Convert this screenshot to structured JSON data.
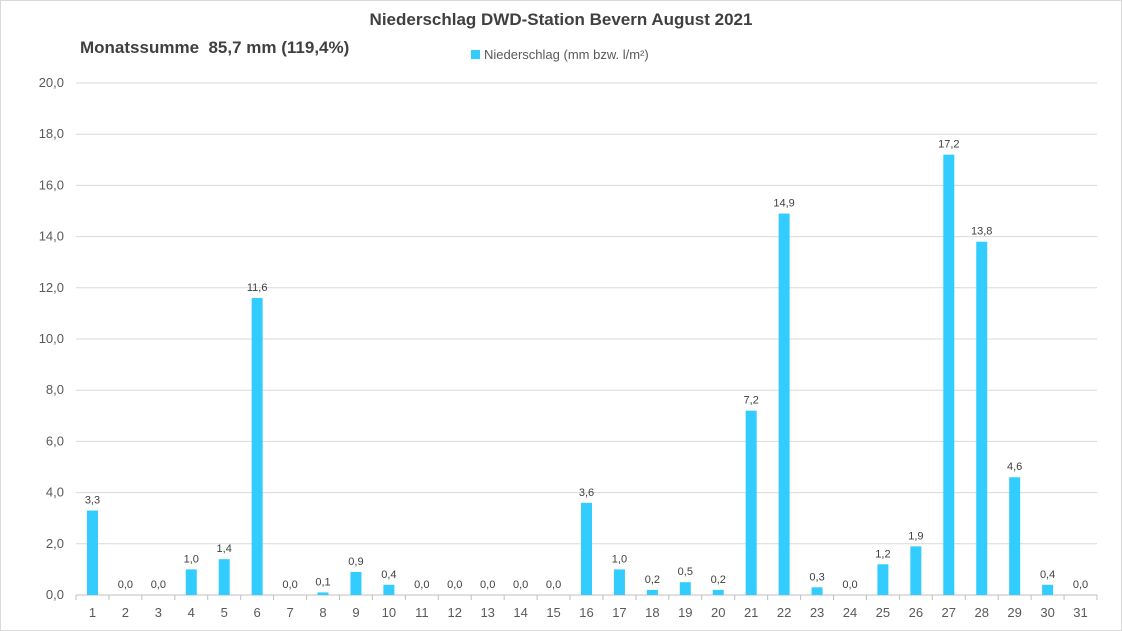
{
  "chart_data": {
    "type": "bar",
    "title": "Niederschlag DWD-Station Bevern August 2021",
    "annotation": "Monatssumme  85,7 mm (119,4%)",
    "legend": {
      "position": "top",
      "entries": [
        "Niederschlag (mm bzw. l/m²)"
      ]
    },
    "categories": [
      "1",
      "2",
      "3",
      "4",
      "5",
      "6",
      "7",
      "8",
      "9",
      "10",
      "11",
      "12",
      "13",
      "14",
      "15",
      "16",
      "17",
      "18",
      "19",
      "20",
      "21",
      "22",
      "23",
      "24",
      "25",
      "26",
      "27",
      "28",
      "29",
      "30",
      "31"
    ],
    "series": [
      {
        "name": "Niederschlag (mm bzw. l/m²)",
        "color": "#33ccff",
        "values": [
          3.3,
          0.0,
          0.0,
          1.0,
          1.4,
          11.6,
          0.0,
          0.1,
          0.9,
          0.4,
          0.0,
          0.0,
          0.0,
          0.0,
          0.0,
          3.6,
          1.0,
          0.2,
          0.5,
          0.2,
          7.2,
          14.9,
          0.3,
          0.0,
          1.2,
          1.9,
          17.2,
          13.8,
          4.6,
          0.4,
          0.0
        ],
        "data_labels": [
          "3,3",
          "0,0",
          "0,0",
          "1,0",
          "1,4",
          "11,6",
          "0,0",
          "0,1",
          "0,9",
          "0,4",
          "0,0",
          "0,0",
          "0,0",
          "0,0",
          "0,0",
          "3,6",
          "1,0",
          "0,2",
          "0,5",
          "0,2",
          "7,2",
          "14,9",
          "0,3",
          "0,0",
          "1,2",
          "1,9",
          "17,2",
          "13,8",
          "4,6",
          "0,4",
          "0,0"
        ]
      }
    ],
    "ylim": [
      0,
      20
    ],
    "yticks": [
      0,
      2,
      4,
      6,
      8,
      10,
      12,
      14,
      16,
      18,
      20
    ],
    "ytick_labels": [
      "0,0",
      "2,0",
      "4,0",
      "6,0",
      "8,0",
      "10,0",
      "12,0",
      "14,0",
      "16,0",
      "18,0",
      "20,0"
    ],
    "grid": true,
    "xlabel": "",
    "ylabel": "",
    "gridline_color": "#d9d9d9"
  }
}
